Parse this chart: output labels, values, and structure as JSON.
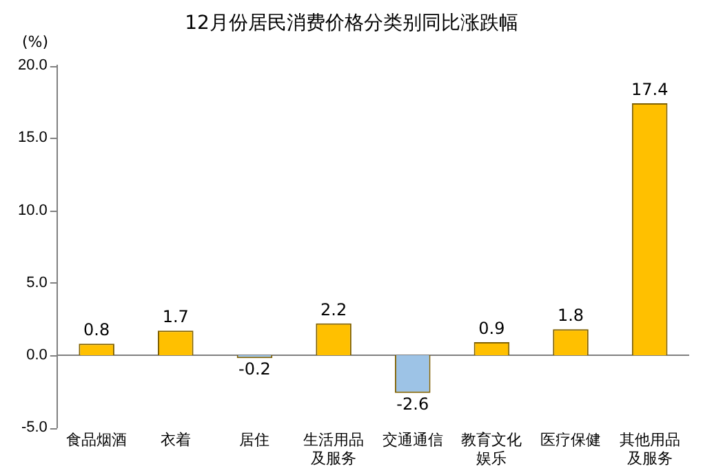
{
  "chart_data": {
    "type": "bar",
    "title": "12月份居民消费价格分类别同比涨跌幅",
    "ylabel": "(%)",
    "categories": [
      "食品烟酒",
      "衣着",
      "居住",
      "生活用品及服务",
      "交通通信",
      "教育文化娱乐",
      "医疗保健",
      "其他用品及服务"
    ],
    "values": [
      0.8,
      1.7,
      -0.2,
      2.2,
      -2.6,
      0.9,
      1.8,
      17.4
    ],
    "colors": [
      "#ffc000",
      "#ffc000",
      "#9dc3e6",
      "#ffc000",
      "#9dc3e6",
      "#ffc000",
      "#ffc000",
      "#ffc000"
    ],
    "ylim": [
      -5,
      20
    ],
    "yticks": [
      {
        "value": -5,
        "label": "-5.0"
      },
      {
        "value": 0,
        "label": "0.0"
      },
      {
        "value": 5,
        "label": "5.0"
      },
      {
        "value": 10,
        "label": "10.0"
      },
      {
        "value": 15,
        "label": "15.0"
      },
      {
        "value": 20,
        "label": "20.0"
      }
    ],
    "ref_lines": [
      {
        "axis": "y",
        "value": 0,
        "color": "#808080"
      }
    ],
    "data_labels": true,
    "grid": false,
    "legend": false
  }
}
